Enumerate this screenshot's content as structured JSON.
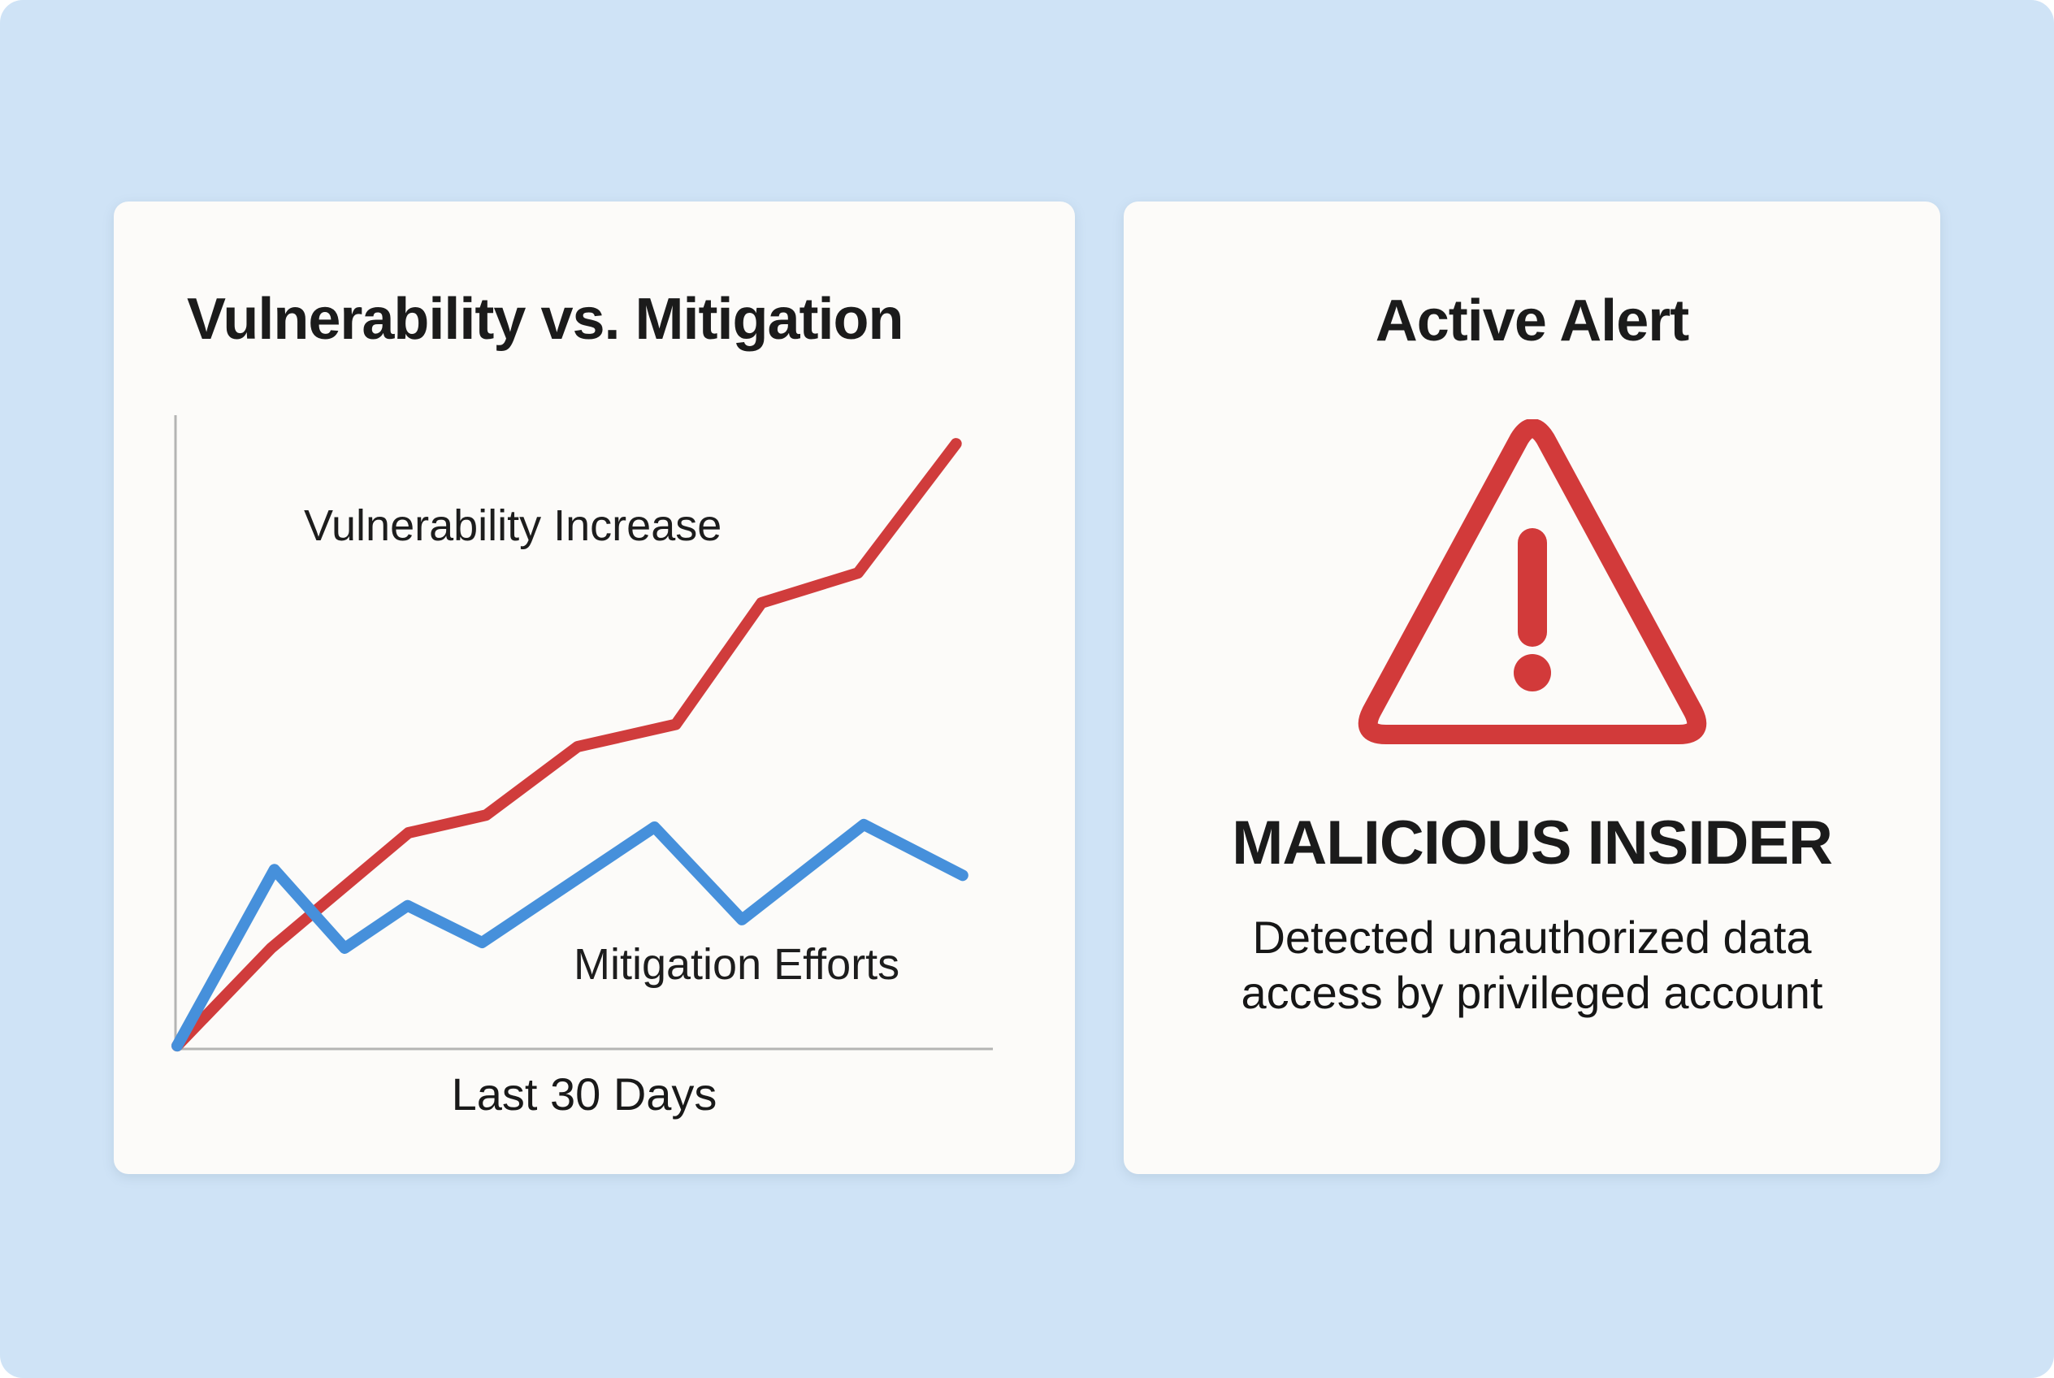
{
  "page": {
    "background_color": "#cfe3f6",
    "card_color": "#fcfbf9"
  },
  "left_card": {
    "title": "Vulnerability vs. Mitigation",
    "red_series_label": "Vulnerability Increase",
    "blue_series_label": "Mitigation Efforts",
    "x_axis_label": "Last 30 Days"
  },
  "right_card": {
    "title": "Active Alert",
    "icon": "warning-triangle-icon",
    "icon_color": "#d23a3a",
    "alert_title": "MALICIOUS INSIDER",
    "alert_description_line1": "Detected unauthorized data",
    "alert_description_line2": "access by privileged account"
  },
  "chart_data": {
    "type": "line",
    "title": "Vulnerability vs. Mitigation",
    "xlabel": "Last 30 Days",
    "ylabel": "",
    "grid": false,
    "legend_position": "inline-annotations",
    "axis_color": "#b4b4b4",
    "x_unit": "percent-of-plot-width",
    "y_unit": "percent-of-plot-height",
    "xlim": [
      0,
      100
    ],
    "ylim": [
      0,
      100
    ],
    "series": [
      {
        "name": "Vulnerability Increase",
        "color": "#d03c3c",
        "points": [
          [
            0.2,
            0.5
          ],
          [
            11.7,
            15.9
          ],
          [
            28.5,
            34.1
          ],
          [
            38.0,
            36.9
          ],
          [
            49.2,
            47.7
          ],
          [
            61.2,
            51.2
          ],
          [
            71.7,
            70.4
          ],
          [
            83.5,
            75.1
          ],
          [
            95.5,
            95.5
          ]
        ]
      },
      {
        "name": "Mitigation Efforts",
        "color": "#4690db",
        "points": [
          [
            0.2,
            0.5
          ],
          [
            12.1,
            28.3
          ],
          [
            20.7,
            15.9
          ],
          [
            28.4,
            22.6
          ],
          [
            37.5,
            16.8
          ],
          [
            58.6,
            35.0
          ],
          [
            69.3,
            20.4
          ],
          [
            84.2,
            35.4
          ],
          [
            96.3,
            27.4
          ]
        ]
      }
    ]
  }
}
